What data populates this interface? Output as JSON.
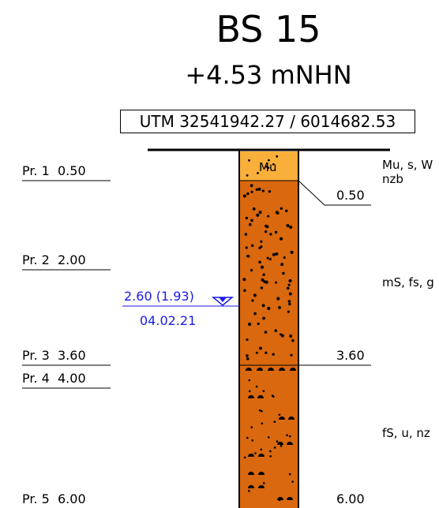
{
  "header": {
    "title": "BS 15",
    "elevation": "+4.53 mNHN",
    "coordinates": "UTM 32541942.27 / 6014682.53"
  },
  "samples": [
    {
      "label": "Pr. 1",
      "depth": "0.50"
    },
    {
      "label": "Pr. 2",
      "depth": "2.00"
    },
    {
      "label": "Pr. 3",
      "depth": "3.60"
    },
    {
      "label": "Pr. 4",
      "depth": "4.00"
    },
    {
      "label": "Pr. 5",
      "depth": "6.00"
    }
  ],
  "water_level": {
    "text": "2.60 (1.93)",
    "date": "04.02.21",
    "color": "#1a1ae6",
    "icon": "groundwater-triangle-icon"
  },
  "layers": [
    {
      "code": "Mu",
      "bottom": "0.50",
      "description_line1": "Mu, s, W",
      "description_line2": "nzb",
      "color": "#f8b03a"
    },
    {
      "code": "",
      "bottom": "3.60",
      "description_line1": "mS, fs, g",
      "color": "#d9680e"
    },
    {
      "code": "",
      "bottom": "6.00",
      "description_line1": "fS, u, nz",
      "color": "#d9680e"
    }
  ]
}
